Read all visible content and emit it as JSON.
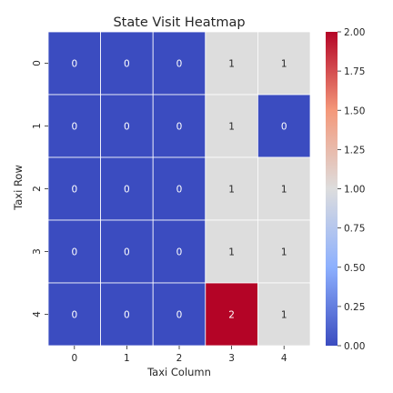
{
  "chart_data": {
    "type": "heatmap",
    "title": "State Visit Heatmap",
    "xlabel": "Taxi Column",
    "ylabel": "Taxi Row",
    "x_categories": [
      "0",
      "1",
      "2",
      "3",
      "4"
    ],
    "y_categories": [
      "0",
      "1",
      "2",
      "3",
      "4"
    ],
    "values": [
      [
        0,
        0,
        0,
        1,
        1
      ],
      [
        0,
        0,
        0,
        1,
        0
      ],
      [
        0,
        0,
        0,
        1,
        1
      ],
      [
        0,
        0,
        0,
        1,
        1
      ],
      [
        0,
        0,
        0,
        2,
        1
      ]
    ],
    "annotations": [
      [
        "0",
        "0",
        "0",
        "1",
        "1"
      ],
      [
        "0",
        "0",
        "0",
        "1",
        "0"
      ],
      [
        "0",
        "0",
        "0",
        "1",
        "1"
      ],
      [
        "0",
        "0",
        "0",
        "1",
        "1"
      ],
      [
        "0",
        "0",
        "0",
        "2",
        "1"
      ]
    ],
    "colormap": "coolwarm",
    "vmin": 0,
    "vmax": 2,
    "colorbar_ticks": [
      "0.00",
      "0.25",
      "0.50",
      "0.75",
      "1.00",
      "1.25",
      "1.50",
      "1.75",
      "2.00"
    ],
    "grid": false,
    "legend": "colorbar-right"
  }
}
